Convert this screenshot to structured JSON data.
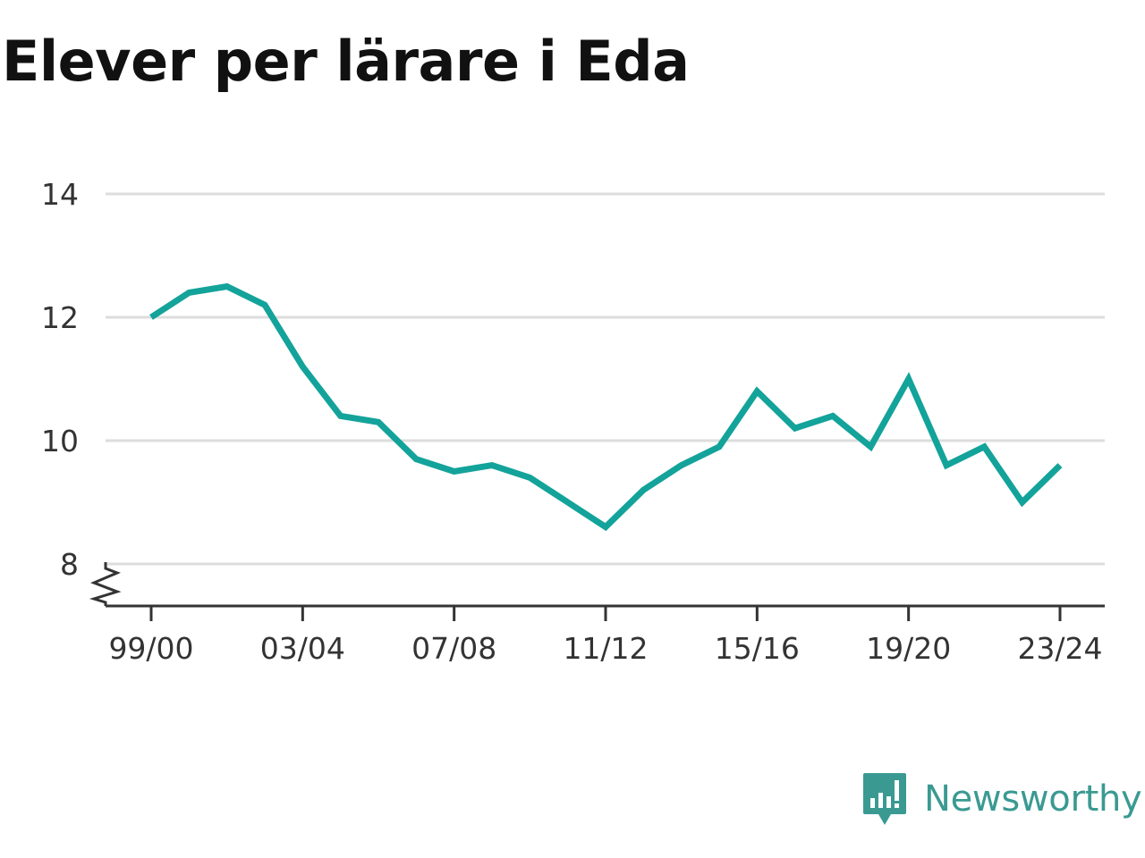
{
  "title": "Elever per lärare i Eda",
  "brand": {
    "name": "Newsworthy",
    "icon": "newsworthy-logo-icon",
    "color": "#3a9a92"
  },
  "chart_data": {
    "type": "line",
    "title": "Elever per lärare i Eda",
    "xlabel": "",
    "ylabel": "",
    "x": [
      "99/00",
      "00/01",
      "01/02",
      "02/03",
      "03/04",
      "04/05",
      "05/06",
      "06/07",
      "07/08",
      "08/09",
      "09/10",
      "10/11",
      "11/12",
      "12/13",
      "13/14",
      "14/15",
      "15/16",
      "16/17",
      "17/18",
      "18/19",
      "19/20",
      "20/21",
      "21/22",
      "22/23",
      "23/24"
    ],
    "x_tick_labels": [
      "99/00",
      "03/04",
      "07/08",
      "11/12",
      "15/16",
      "19/20",
      "23/24"
    ],
    "y_ticks": [
      8,
      10,
      12,
      14
    ],
    "ylim": [
      7.3,
      14
    ],
    "y_axis_break": true,
    "grid": "horizontal",
    "series": [
      {
        "color": "#13a39a",
        "values": [
          12.0,
          12.4,
          12.5,
          12.2,
          11.2,
          10.4,
          10.3,
          9.7,
          9.5,
          9.6,
          9.4,
          9.0,
          8.6,
          9.2,
          9.6,
          9.9,
          10.8,
          10.2,
          10.4,
          9.9,
          11.0,
          9.6,
          9.9,
          9.0,
          9.6
        ]
      }
    ]
  }
}
